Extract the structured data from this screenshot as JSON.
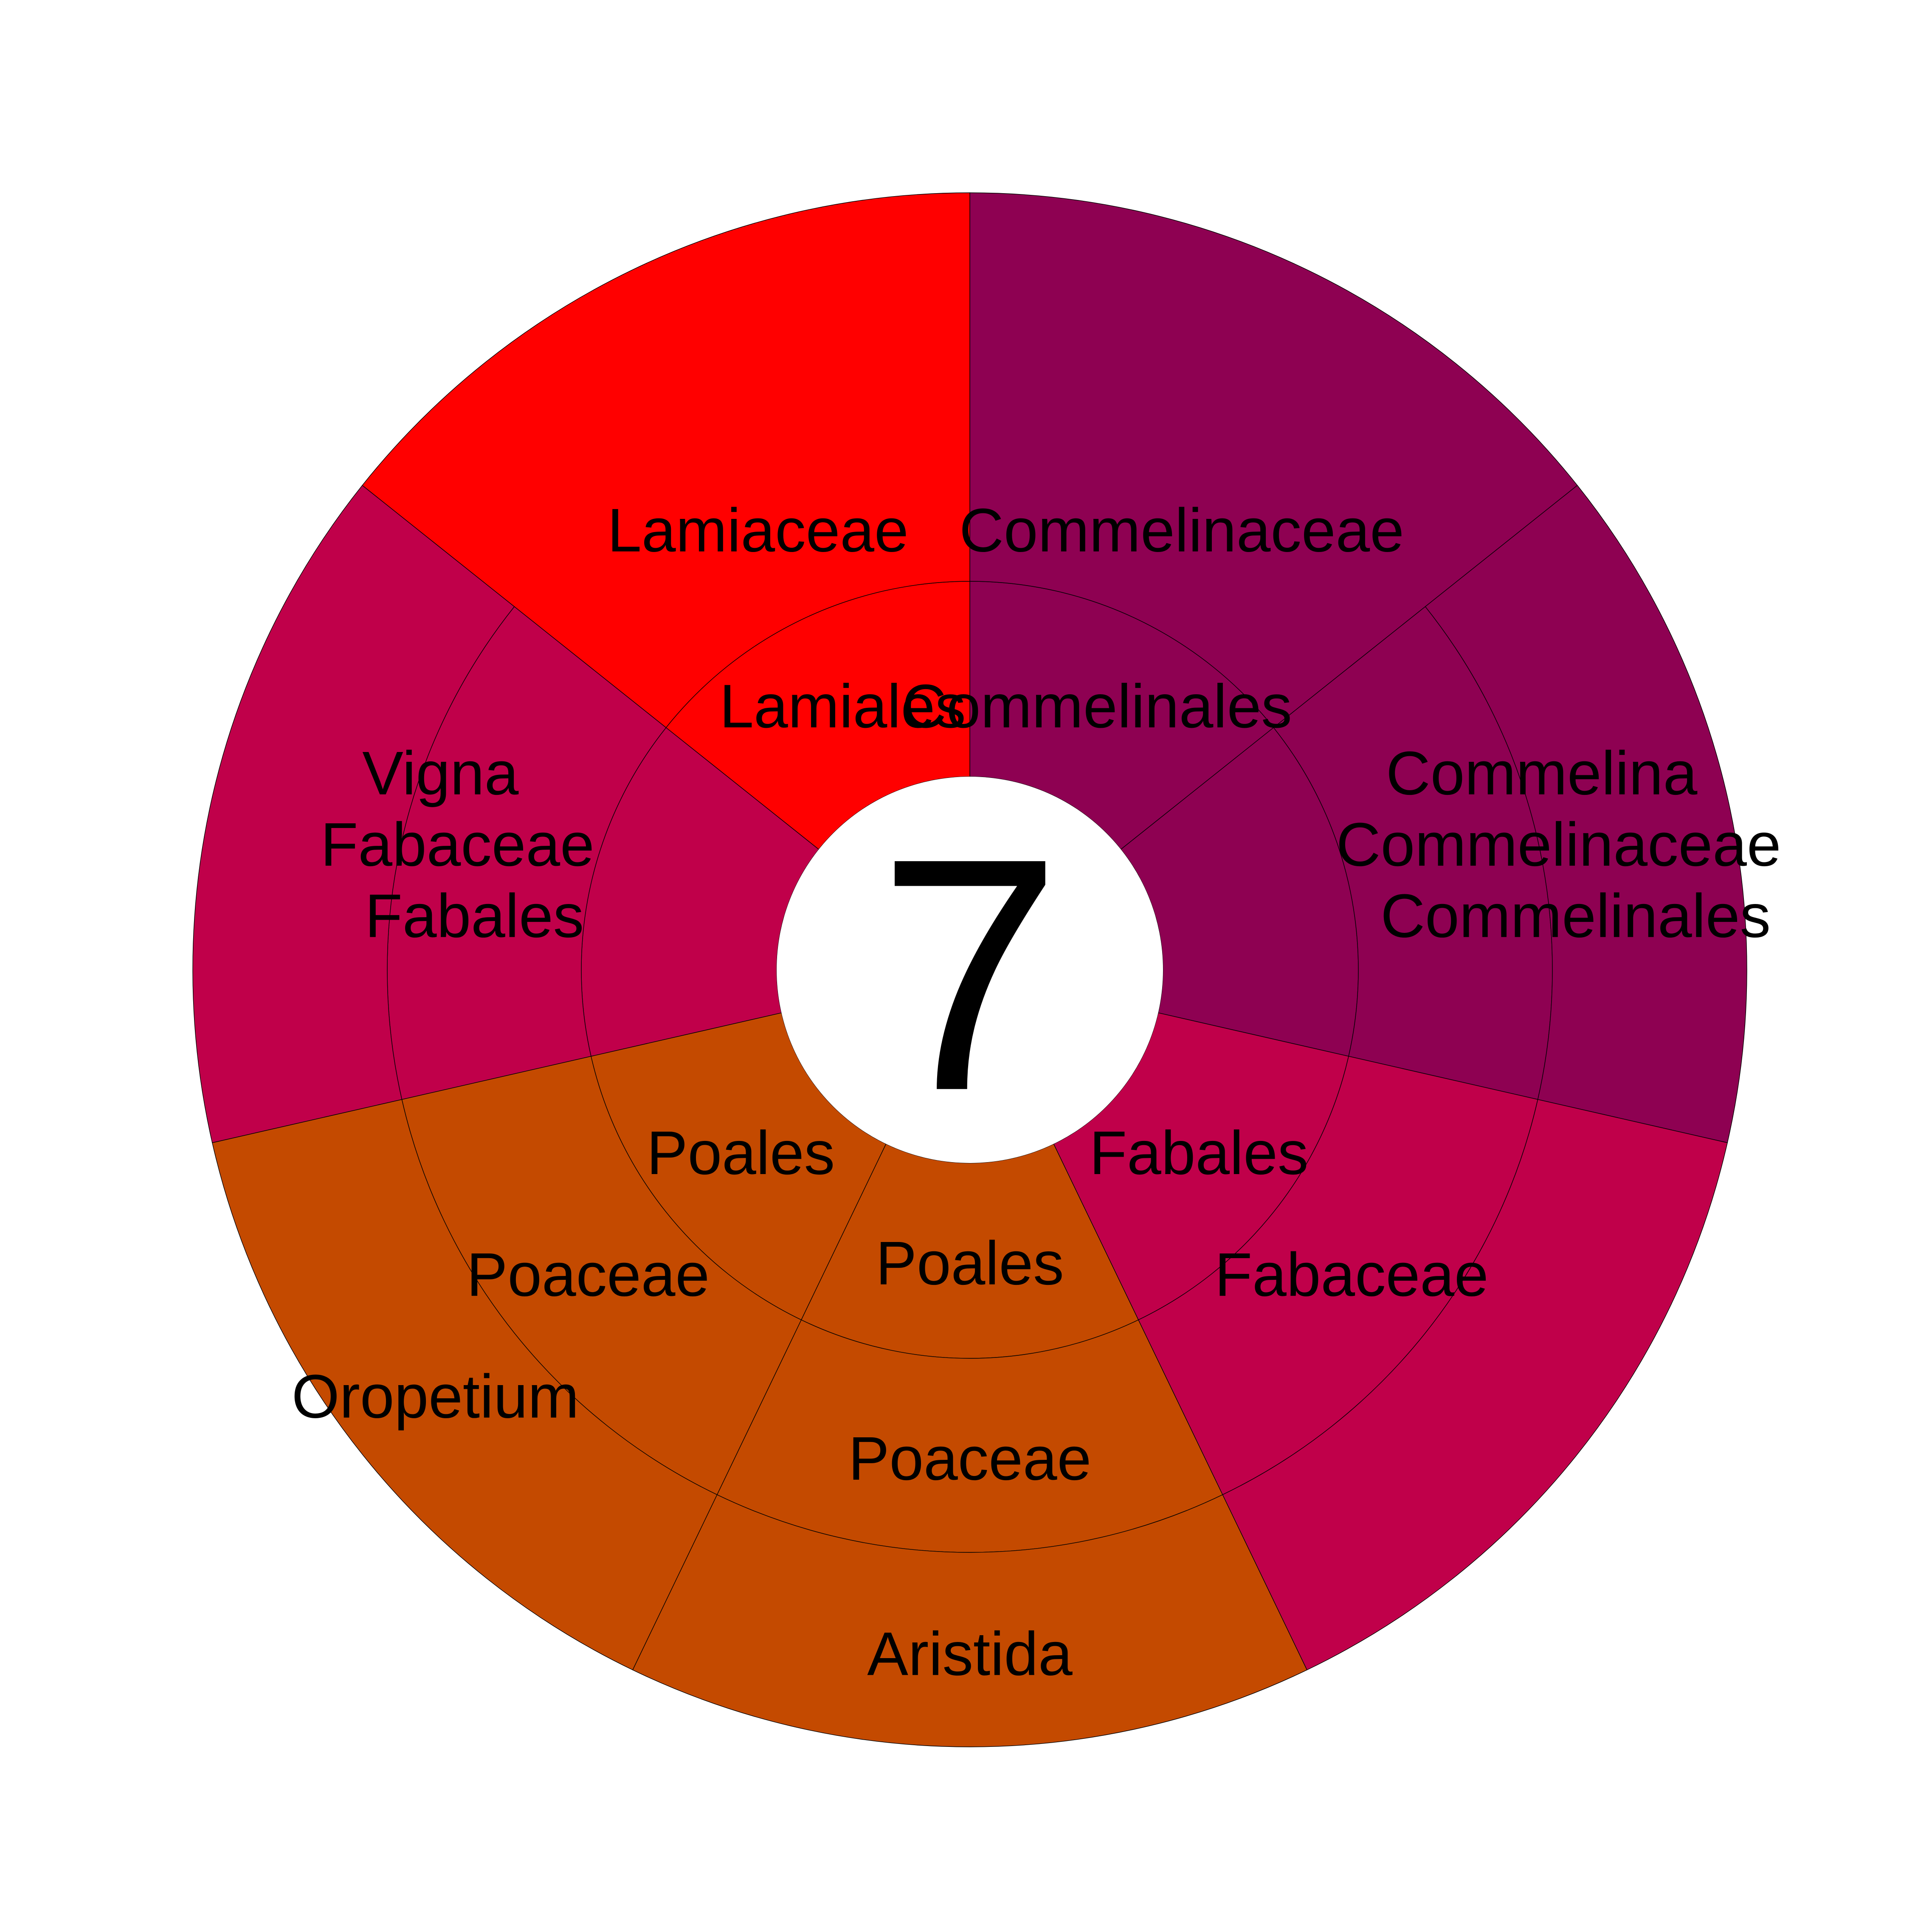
{
  "chart_data": {
    "type": "sunburst",
    "center_label": "7",
    "segments": [
      {
        "key": "commelinales-a",
        "color": "#8e0152",
        "share": 1,
        "labels": [
          "Commelinales",
          "Commelinaceae",
          ""
        ],
        "merge_outer_rings": true
      },
      {
        "key": "commelinales-b",
        "color": "#8e0152",
        "share": 1,
        "labels": [
          "Commelinales",
          "Commelinaceae",
          "Commelina"
        ],
        "stacked_outer_label": true
      },
      {
        "key": "fabales-a",
        "color": "#c0004a",
        "share": 1,
        "labels": [
          "Fabales",
          "Fabaceae",
          ""
        ]
      },
      {
        "key": "poales-a",
        "color": "#c44a00",
        "share": 1,
        "labels": [
          "Poales",
          "Poaceae",
          "Aristida"
        ]
      },
      {
        "key": "poales-b",
        "color": "#c44a00",
        "share": 1,
        "labels": [
          "Poales",
          "Poaceae",
          "Oropetium"
        ]
      },
      {
        "key": "fabales-b",
        "color": "#c0004a",
        "share": 1,
        "labels": [
          "Fabales",
          "Fabaceae",
          "Vigna"
        ],
        "stacked_outer_label": true
      },
      {
        "key": "lamiales",
        "color": "#ff0000",
        "share": 1,
        "labels": [
          "Lamiales",
          "Lamiaceae",
          ""
        ],
        "merge_outer_rings": true
      }
    ]
  }
}
